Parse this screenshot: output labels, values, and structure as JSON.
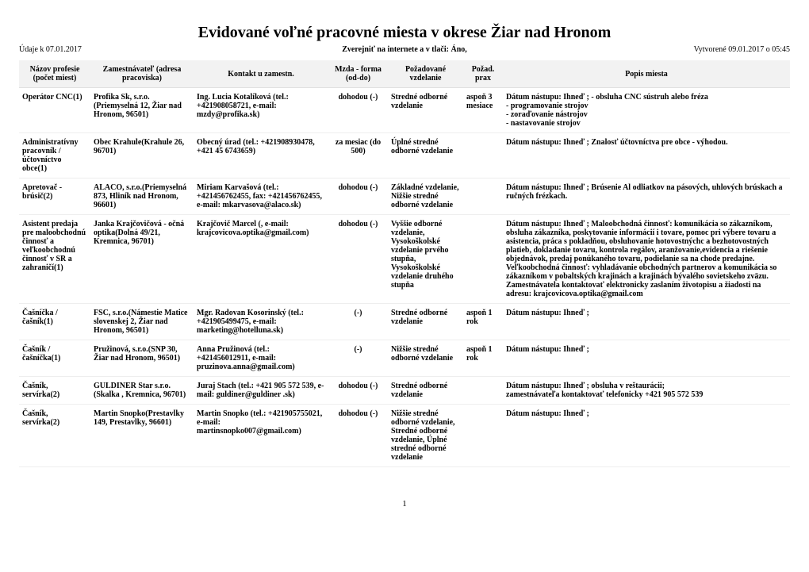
{
  "title": "Evidované voľné pracovné miesta v okrese Žiar nad Hronom",
  "meta": {
    "left": "Údaje k 07.01.2017",
    "center": "Zverejniť na internete a v tlači: Áno,",
    "right": "Vytvorené 09.01.2017 o 05:45"
  },
  "headers": {
    "profesia": "Názov profesie (počet miest)",
    "zamestnavatel": "Zamestnávateľ (adresa pracoviska)",
    "kontakt": "Kontakt u zamestn.",
    "mzda": "Mzda - forma (od-do)",
    "vzdelanie": "Požadované vzdelanie",
    "prax": "Požad. prax",
    "popis": "Popis miesta"
  },
  "rows": [
    {
      "profesia": "Operátor CNC(1)",
      "zamestnavatel": "Profika Sk, s.r.o.(Priemyselná 12, Žiar nad Hronom, 96501)",
      "kontakt": "Ing. Lucia Kotalíková (tel.: +421908058721, e-mail: mzdy@profika.sk)",
      "mzda": "dohodou (-)",
      "vzdelanie": "Stredné odborné vzdelanie",
      "prax": "aspoň 3 mesiace",
      "popis": "Dátum nástupu: Ihneď ; - obsluha CNC sústruh alebo fréza\n- programovanie strojov\n- zoraďovanie nástrojov\n- nastavovanie strojov"
    },
    {
      "profesia": "Administratívny pracovník / účtovníctvo obce(1)",
      "zamestnavatel": "Obec Krahule(Krahule 26, 96701)",
      "kontakt": "Obecný úrad (tel.: +421908930478, +421 45 6743659)",
      "mzda": "za mesiac (do 500)",
      "vzdelanie": "Úplné stredné odborné vzdelanie",
      "prax": "",
      "popis": "Dátum nástupu: Ihneď ; Znalosť účtovníctva  pre obce - výhodou."
    },
    {
      "profesia": "Apretovač - brúsič(2)",
      "zamestnavatel": "ALACO, s.r.o.(Priemyselná 873, Hliník nad Hronom, 96601)",
      "kontakt": "Miriam Karvašová (tel.: +421456762455, fax: +421456762455, e-mail: mkarvasova@alaco.sk)",
      "mzda": "dohodou (-)",
      "vzdelanie": "Základné vzdelanie, Nižšie stredné odborné vzdelanie",
      "prax": "",
      "popis": "Dátum nástupu: Ihneď ; Brúsenie Al odliatkov na pásových, uhlových brúskach a ručných frézkach."
    },
    {
      "profesia": "Asistent predaja pre maloobchodnú činnosť a veľkoobchodnú činnosť v SR a zahraničí(1)",
      "zamestnavatel": "Janka Krajčovičová - očná optika(Dolná 49/21, Kremnica, 96701)",
      "kontakt": "Krajčovič Marcel (, e-mail: krajcovicova.optika@gmail.com)",
      "mzda": "dohodou (-)",
      "vzdelanie": "Vyššie odborné vzdelanie, Vysokoškolské vzdelanie prvého stupňa, Vysokoškolské vzdelanie druhého stupňa",
      "prax": "",
      "popis": "Dátum nástupu: Ihneď ; Maloobchodná činnosť: komunikácia so zákazníkom, obsluha zákazníka, poskytovanie informácií i tovare, pomoc pri výbere tovaru a asistencia, práca s pokladňou, obsluhovanie hotovostnýchc a bezhotovostných platieb, dokladanie tovaru, kontrola regálov, aranžovanie,evidencia a riešenie objednávok, predaj ponúkaného tovaru, podielanie sa na chode predajne.  Veľkoobchodná činnosť: vyhladávanie obchodných partnerov a komunikácia so zákazníkom v pobaltských krajinách a krajinách bývalého sovietskeho zväzu. Zamestnávatela kontaktovať elektronicky zaslaním životopisu a žiadosti na adresu: krajcovicova.optika@gmail.com"
    },
    {
      "profesia": "Čašníčka / čašník(1)",
      "zamestnavatel": "FSC, s.r.o.(Námestie Matice slovenskej  2, Žiar nad Hronom, 96501)",
      "kontakt": "Mgr. Radovan Kosorinský (tel.: +421905499475, e-mail: marketing@hotelluna.sk)",
      "mzda": "(-)",
      "vzdelanie": "Stredné odborné vzdelanie",
      "prax": "aspoň 1 rok",
      "popis": "Dátum nástupu: Ihneď ;"
    },
    {
      "profesia": "Čašník / čašníčka(1)",
      "zamestnavatel": "Pružinová, s.r.o.(SNP 30, Žiar nad Hronom, 96501)",
      "kontakt": "Anna Pružinová (tel.: +421456012911, e-mail: pruzinova.anna@gmail.com)",
      "mzda": "(-)",
      "vzdelanie": "Nižšie stredné odborné vzdelanie",
      "prax": "aspoň 1 rok",
      "popis": "Dátum nástupu: Ihneď ;"
    },
    {
      "profesia": "Čašník, servírka(2)",
      "zamestnavatel": "GULDINER Star s.r.o.(Skalka , Kremnica, 96701)",
      "kontakt": "Juraj Stach (tel.: +421 905 572 539, e-mail: guldiner@guldiner .sk)",
      "mzda": "dohodou (-)",
      "vzdelanie": "Stredné odborné vzdelanie",
      "prax": "",
      "popis": "Dátum nástupu: Ihneď ; obsluha v reštaurácii;\nzamestnávateľa kontaktovať telefonicky +421 905 572 539"
    },
    {
      "profesia": "Čašník, servírka(2)",
      "zamestnavatel": "Martin Snopko(Prestavlky 149, Prestavlky, 96601)",
      "kontakt": "Martin Snopko (tel.: +421905755021, e-mail: martinsnopko007@gmail.com)",
      "mzda": "dohodou (-)",
      "vzdelanie": "Nižšie stredné odborné vzdelanie, Stredné odborné vzdelanie, Úplné stredné odborné vzdelanie",
      "prax": "",
      "popis": "Dátum nástupu: Ihneď ;"
    }
  ],
  "pagenum": "1"
}
